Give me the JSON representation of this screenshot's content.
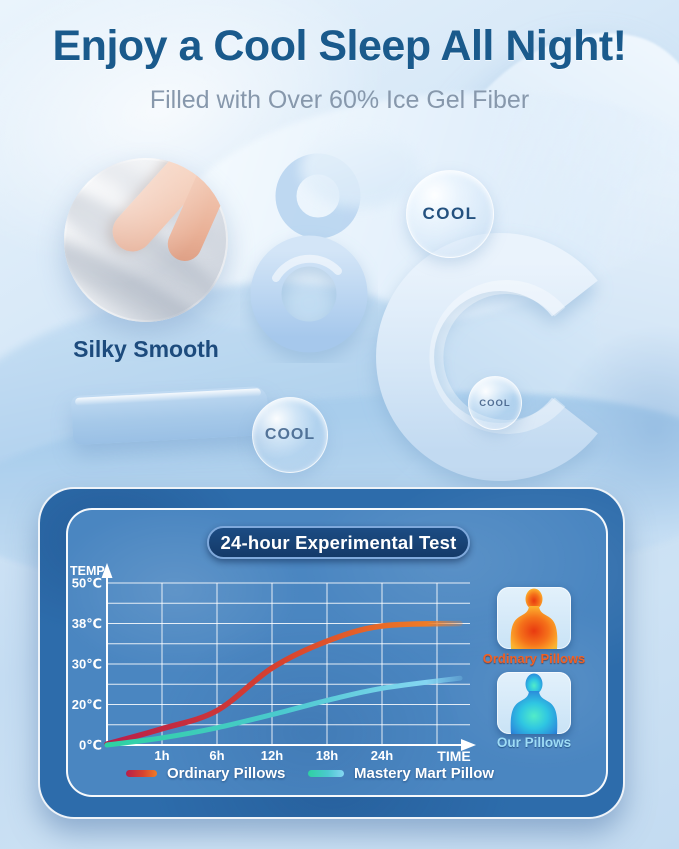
{
  "header": {
    "title": "Enjoy a Cool Sleep All Night!",
    "subtitle": "Filled with Over 60% Ice Gel Fiber"
  },
  "hero": {
    "caption": "Silky Smooth",
    "bubbles": [
      {
        "text": "COOL"
      },
      {
        "text": "COOL"
      },
      {
        "text": "COOL"
      }
    ]
  },
  "experiment": {
    "title": "24-hour Experimental Test",
    "legend": [
      {
        "label": "Ordinary Pillows"
      },
      {
        "label": "Mastery Mart Pillow"
      }
    ],
    "thermal_cards": [
      {
        "label": "Ordinary Pillows",
        "state": "hot"
      },
      {
        "label": "Our Pillows",
        "state": "cool"
      }
    ]
  },
  "chart_data": {
    "type": "line",
    "title": "24-hour Experimental Test",
    "x_label": "TIME",
    "y_label": "TEMP",
    "x_ticks": [
      "1h",
      "6h",
      "12h",
      "18h",
      "24h"
    ],
    "y_ticks": [
      "50℃",
      "38℃",
      "30℃",
      "20℃",
      "0℃"
    ],
    "y_tick_values": [
      50,
      38,
      30,
      20,
      0
    ],
    "ylim": [
      0,
      50
    ],
    "grid": true,
    "legend_position": "bottom",
    "x_hours": [
      0,
      1,
      6,
      12,
      18,
      24,
      30
    ],
    "series": [
      {
        "name": "Ordinary Pillows",
        "values": [
          0.5,
          8,
          17,
          29,
          34.5,
          37.5,
          38
        ],
        "colors": [
          "#b81e4b",
          "#d8432e",
          "#ef7c26"
        ]
      },
      {
        "name": "Mastery Mart Pillow",
        "values": [
          0,
          3.5,
          8.5,
          15,
          21,
          24,
          26.5
        ],
        "colors": [
          "#2ed1a2",
          "#4cc9cf",
          "#85d6f2"
        ]
      }
    ]
  }
}
